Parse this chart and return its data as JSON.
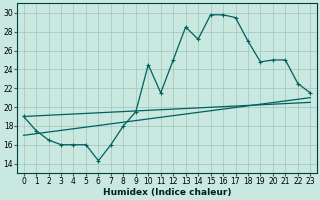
{
  "xlabel": "Humidex (Indice chaleur)",
  "ylabel": "",
  "xlim": [
    -0.5,
    23.5
  ],
  "ylim": [
    13,
    31
  ],
  "yticks": [
    14,
    16,
    18,
    20,
    22,
    24,
    26,
    28,
    30
  ],
  "xticks": [
    0,
    1,
    2,
    3,
    4,
    5,
    6,
    7,
    8,
    9,
    10,
    11,
    12,
    13,
    14,
    15,
    16,
    17,
    18,
    19,
    20,
    21,
    22,
    23
  ],
  "bg_color": "#c8e8e0",
  "grid_color": "#a8c8c0",
  "line_color": "#006060",
  "curve1_x": [
    0,
    1,
    2,
    3,
    4,
    5,
    6,
    7,
    8,
    9,
    10,
    11,
    12,
    13,
    14,
    15,
    16,
    17,
    18,
    19,
    20,
    21,
    22,
    23
  ],
  "curve1_y": [
    19.0,
    17.5,
    16.5,
    16.0,
    16.0,
    16.0,
    14.3,
    16.0,
    18.0,
    19.5,
    24.5,
    21.5,
    25.0,
    28.5,
    27.2,
    29.8,
    29.8,
    29.5,
    27.0,
    24.8,
    25.0,
    25.0,
    22.5,
    21.5
  ],
  "curve2_x": [
    0,
    23
  ],
  "curve2_y": [
    17.0,
    21.0
  ],
  "curve3_x": [
    0,
    23
  ],
  "curve3_y": [
    19.0,
    20.5
  ],
  "tick_fontsize": 5.5,
  "xlabel_fontsize": 6.5,
  "marker_size": 3,
  "linewidth": 0.9
}
